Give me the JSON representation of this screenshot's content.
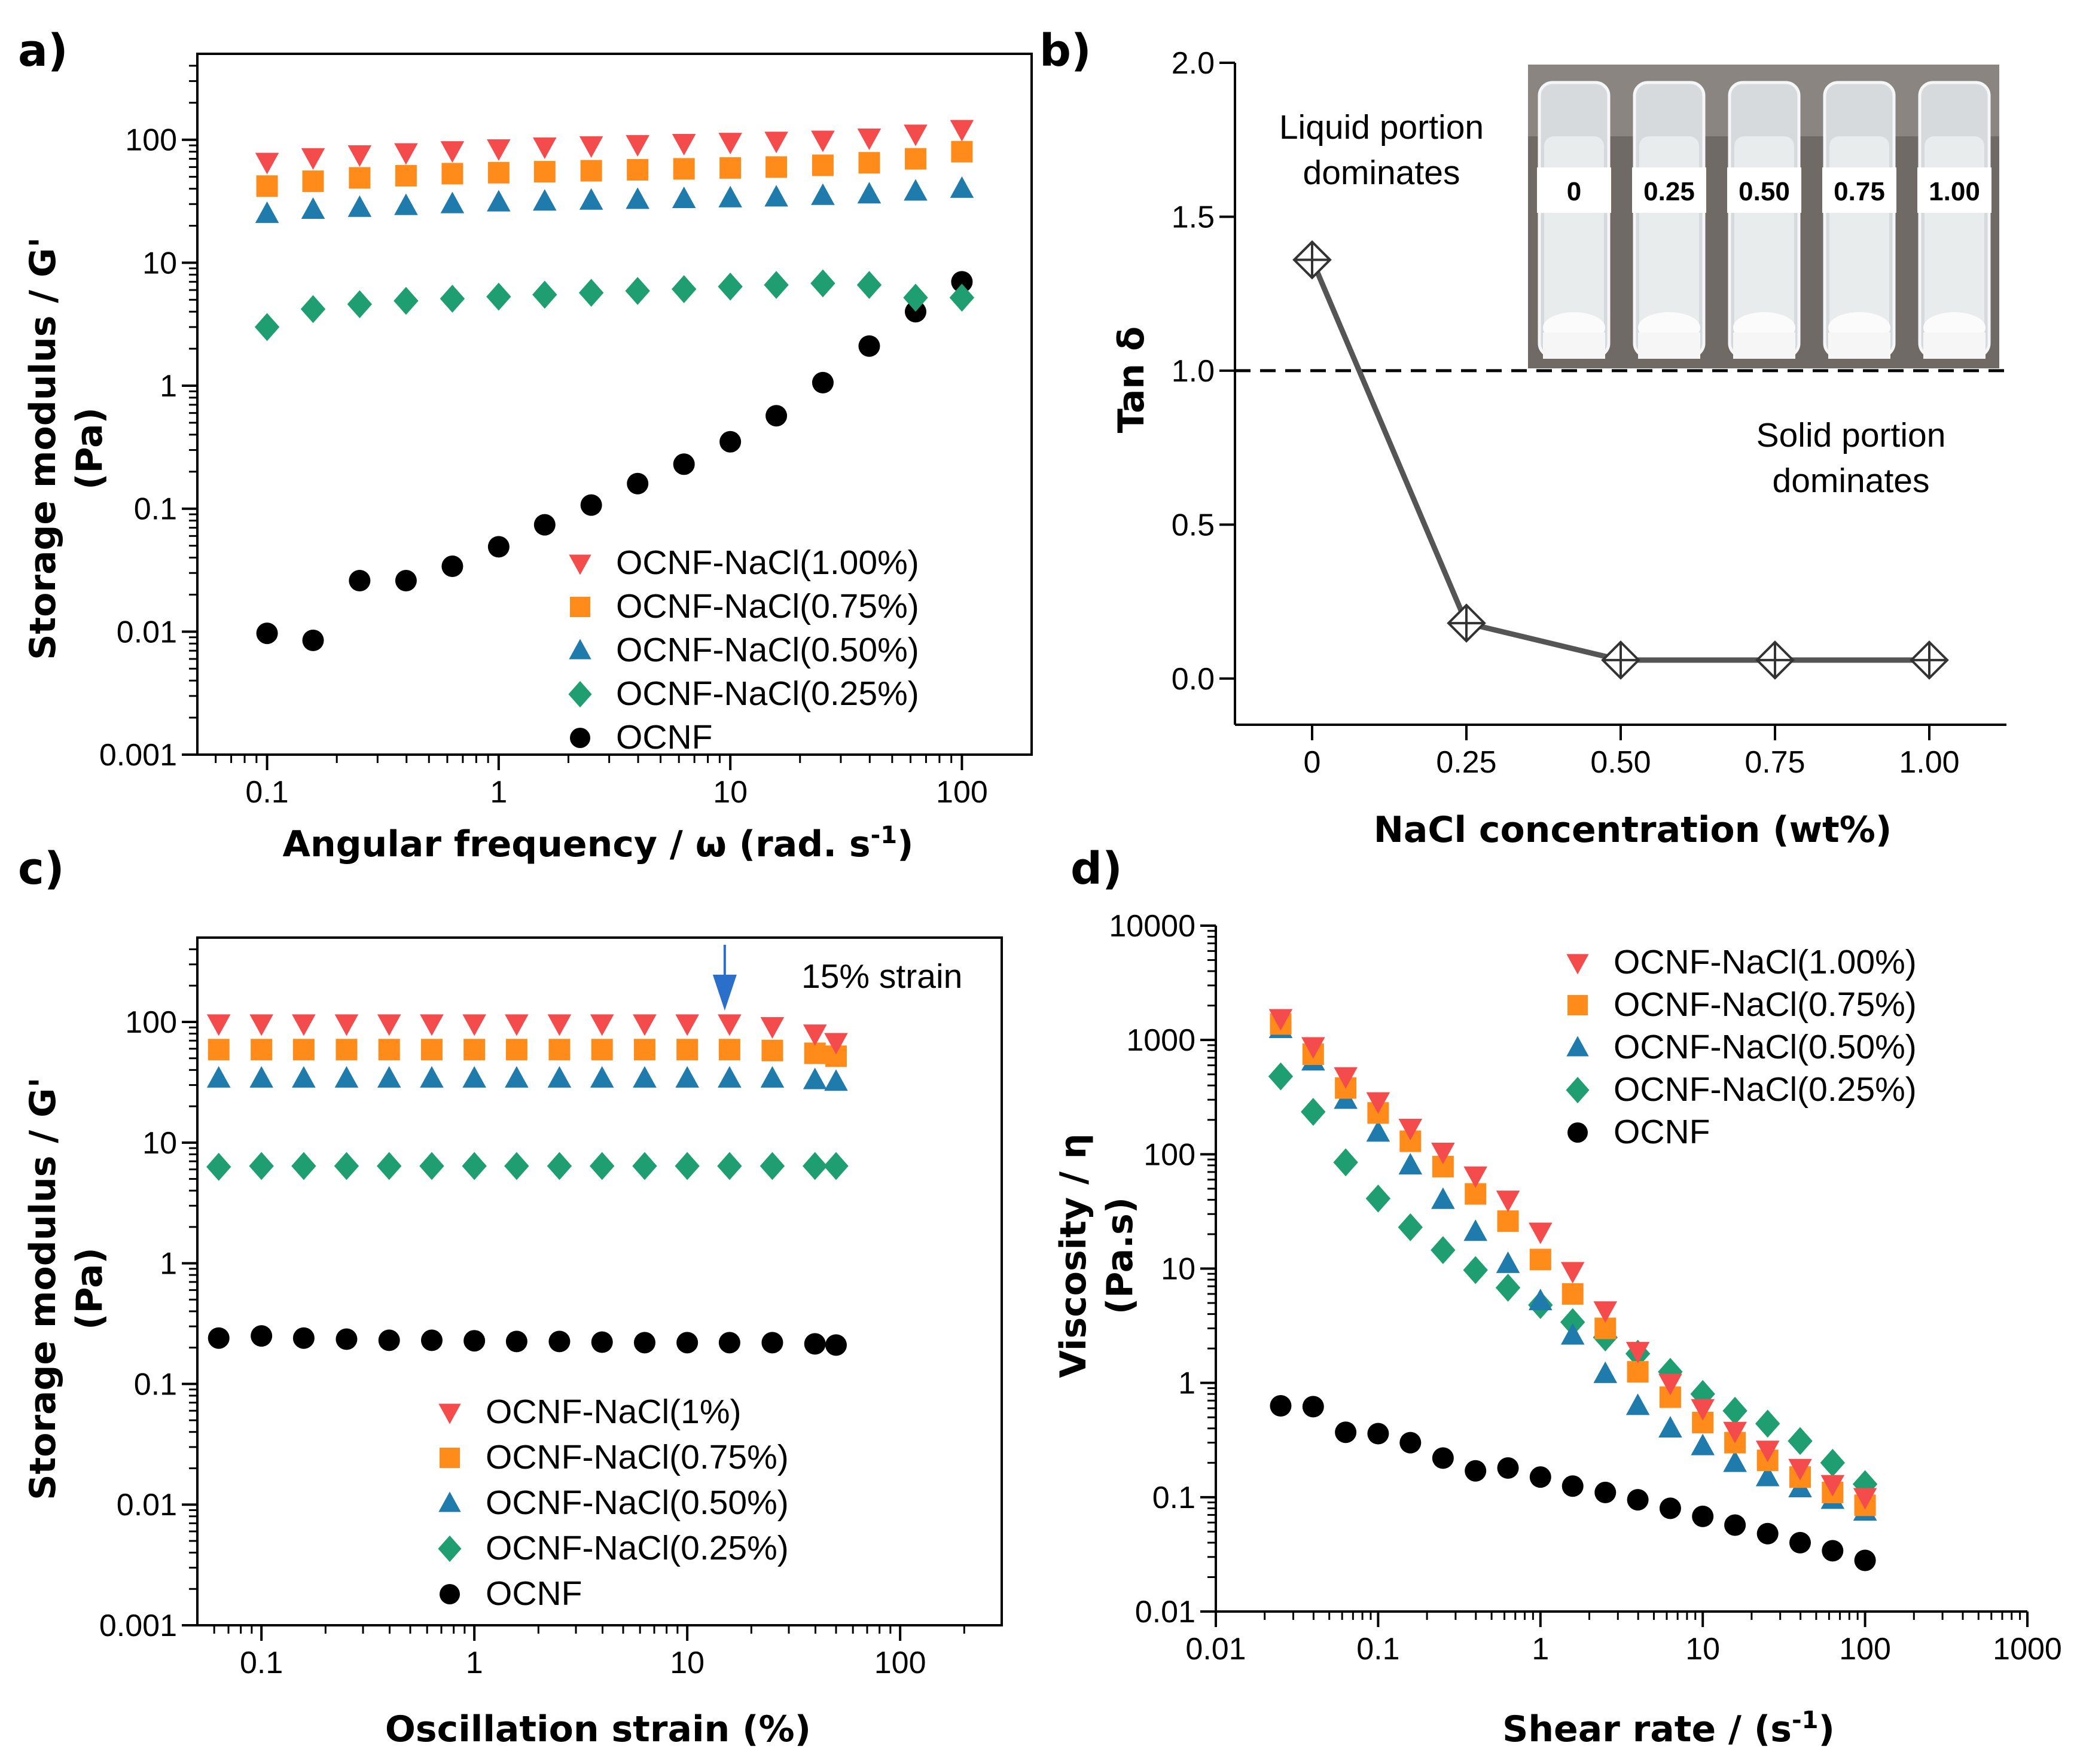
{
  "chart_data": [
    {
      "panel": "a)",
      "type": "scatter",
      "x_scale": "log",
      "y_scale": "log",
      "xlabel": "Angular frequency / ω (rad. s",
      "xlabel_sup": "-1",
      "xlabel_end": ")",
      "ylabel_lines": [
        "Storage modulus / G'",
        "(Pa)"
      ],
      "xlim": [
        0.05,
        200
      ],
      "ylim": [
        0.001,
        500
      ],
      "xticks": [
        {
          "v": 0.1,
          "label": "0.1"
        },
        {
          "v": 1,
          "label": "1"
        },
        {
          "v": 10,
          "label": "10"
        },
        {
          "v": 100,
          "label": "100"
        }
      ],
      "yticks": [
        {
          "v": 0.001,
          "label": "0.001"
        },
        {
          "v": 0.01,
          "label": "0.01"
        },
        {
          "v": 0.1,
          "label": "0.1"
        },
        {
          "v": 1,
          "label": "1"
        },
        {
          "v": 10,
          "label": "10"
        },
        {
          "v": 100,
          "label": "100"
        }
      ],
      "legend_position": "bottom-right",
      "series": [
        {
          "name": "OCNF-NaCl(1.00%)",
          "marker": "triangle-down",
          "color": "#f44c4c",
          "x": [
            0.1,
            0.158,
            0.251,
            0.398,
            0.631,
            1,
            1.58,
            2.51,
            3.98,
            6.31,
            10,
            15.8,
            25.1,
            39.8,
            63.1,
            100
          ],
          "y": [
            66,
            72,
            76,
            79,
            82,
            85,
            88,
            90,
            92,
            94,
            96,
            98,
            100,
            104,
            112,
            122
          ]
        },
        {
          "name": "OCNF-NaCl(0.75%)",
          "marker": "square",
          "color": "#ff8c1a",
          "x": [
            0.1,
            0.158,
            0.251,
            0.398,
            0.631,
            1,
            1.58,
            2.51,
            3.98,
            6.31,
            10,
            15.8,
            25.1,
            39.8,
            63.1,
            100
          ],
          "y": [
            42,
            46,
            49,
            51,
            53,
            54,
            55,
            56,
            57,
            58,
            59,
            60,
            62,
            65,
            70,
            80
          ]
        },
        {
          "name": "OCNF-NaCl(0.50%)",
          "marker": "triangle-up",
          "color": "#1f7bab",
          "x": [
            0.1,
            0.158,
            0.251,
            0.398,
            0.631,
            1,
            1.58,
            2.51,
            3.98,
            6.31,
            10,
            15.8,
            25.1,
            39.8,
            63.1,
            100
          ],
          "y": [
            25,
            27,
            28,
            29,
            30,
            31,
            31.5,
            32,
            32.5,
            33,
            33.5,
            34,
            35,
            36,
            38,
            40
          ]
        },
        {
          "name": "OCNF-NaCl(0.25%)",
          "marker": "diamond",
          "color": "#1f9e72",
          "x": [
            0.1,
            0.158,
            0.251,
            0.398,
            0.631,
            1,
            1.58,
            2.51,
            3.98,
            6.31,
            10,
            15.8,
            25.1,
            39.8,
            63.1,
            100
          ],
          "y": [
            3.0,
            4.2,
            4.6,
            4.9,
            5.1,
            5.3,
            5.5,
            5.7,
            5.9,
            6.1,
            6.4,
            6.6,
            6.8,
            6.6,
            5.2,
            5.2
          ]
        },
        {
          "name": "OCNF",
          "marker": "circle",
          "color": "#000000",
          "x": [
            0.1,
            0.158,
            0.251,
            0.398,
            0.631,
            1,
            1.58,
            2.51,
            3.98,
            6.31,
            10,
            15.8,
            25.1,
            39.8,
            63.1,
            100
          ],
          "y": [
            0.0097,
            0.0085,
            0.026,
            0.026,
            0.034,
            0.049,
            0.074,
            0.107,
            0.16,
            0.23,
            0.35,
            0.57,
            1.06,
            2.1,
            4.0,
            7.0
          ]
        }
      ]
    },
    {
      "panel": "b)",
      "type": "line",
      "xlabel": "NaCl concentration (wt%)",
      "ylabel": "Tan δ",
      "xlim": [
        -0.125,
        1.125
      ],
      "ylim": [
        -0.15,
        2.0
      ],
      "xticks": [
        {
          "v": 0,
          "label": "0"
        },
        {
          "v": 0.25,
          "label": "0.25"
        },
        {
          "v": 0.5,
          "label": "0.50"
        },
        {
          "v": 0.75,
          "label": "0.75"
        },
        {
          "v": 1.0,
          "label": "1.00"
        }
      ],
      "yticks": [
        {
          "v": 0,
          "label": "0.0"
        },
        {
          "v": 0.5,
          "label": "0.5"
        },
        {
          "v": 1.0,
          "label": "1.0"
        },
        {
          "v": 1.5,
          "label": "1.5"
        },
        {
          "v": 2.0,
          "label": "2.0"
        }
      ],
      "series": [
        {
          "name": "Tan δ",
          "marker": "crossed-diamond",
          "color": "#555555",
          "x": [
            0,
            0.25,
            0.5,
            0.75,
            1.0
          ],
          "y": [
            1.36,
            0.18,
            0.06,
            0.06,
            0.06
          ]
        }
      ],
      "reference_line": {
        "y": 1.0,
        "style": "dashed"
      },
      "annotations": {
        "liquid": [
          "Liquid portion",
          "dominates"
        ],
        "solid": [
          "Solid portion",
          "dominates"
        ]
      },
      "inset_photo": {
        "description": "five vials",
        "labels": [
          "0",
          "0.25",
          "0.50",
          "0.75",
          "1.00"
        ]
      }
    },
    {
      "panel": "c)",
      "type": "scatter",
      "x_scale": "log",
      "y_scale": "log",
      "xlabel": "Oscillation strain (%)",
      "ylabel_lines": [
        "Storage modulus / G'",
        "(Pa)"
      ],
      "xlim": [
        0.05,
        300
      ],
      "ylim": [
        0.001,
        500
      ],
      "xticks": [
        {
          "v": 0.1,
          "label": "0.1"
        },
        {
          "v": 1,
          "label": "1"
        },
        {
          "v": 10,
          "label": "10"
        },
        {
          "v": 100,
          "label": "100"
        }
      ],
      "yticks": [
        {
          "v": 0.001,
          "label": "0.001"
        },
        {
          "v": 0.01,
          "label": "0.01"
        },
        {
          "v": 0.1,
          "label": "0.1"
        },
        {
          "v": 1,
          "label": "1"
        },
        {
          "v": 10,
          "label": "10"
        },
        {
          "v": 100,
          "label": "100"
        }
      ],
      "legend_position": "bottom-center",
      "annotation": {
        "text": "15% strain",
        "x": 15
      },
      "series": [
        {
          "name": "OCNF-NaCl(1%)",
          "marker": "triangle-down",
          "color": "#f44c4c",
          "x": [
            0.063,
            0.1,
            0.158,
            0.251,
            0.398,
            0.631,
            1,
            1.58,
            2.51,
            3.98,
            6.31,
            10,
            15.8,
            25.1,
            39.8,
            50
          ],
          "y": [
            97,
            97,
            97,
            97,
            97,
            97,
            97,
            97,
            97,
            97,
            97,
            97,
            97,
            92,
            80,
            68
          ]
        },
        {
          "name": "OCNF-NaCl(0.75%)",
          "marker": "square",
          "color": "#ff8c1a",
          "x": [
            0.063,
            0.1,
            0.158,
            0.251,
            0.398,
            0.631,
            1,
            1.58,
            2.51,
            3.98,
            6.31,
            10,
            15.8,
            25.1,
            39.8,
            50
          ],
          "y": [
            59,
            59,
            59,
            59,
            59,
            59,
            59,
            59,
            59,
            59,
            59,
            59,
            59,
            58,
            55,
            52
          ]
        },
        {
          "name": "OCNF-NaCl(0.50%)",
          "marker": "triangle-up",
          "color": "#1f7bab",
          "x": [
            0.063,
            0.1,
            0.158,
            0.251,
            0.398,
            0.631,
            1,
            1.58,
            2.51,
            3.98,
            6.31,
            10,
            15.8,
            25.1,
            39.8,
            50
          ],
          "y": [
            34,
            34,
            34,
            34,
            34,
            34,
            34,
            34,
            34,
            34,
            34,
            34,
            34,
            34,
            33,
            32
          ]
        },
        {
          "name": "OCNF-NaCl(0.25%)",
          "marker": "diamond",
          "color": "#1f9e72",
          "x": [
            0.063,
            0.1,
            0.158,
            0.251,
            0.398,
            0.631,
            1,
            1.58,
            2.51,
            3.98,
            6.31,
            10,
            15.8,
            25.1,
            39.8,
            50
          ],
          "y": [
            6.3,
            6.4,
            6.4,
            6.4,
            6.4,
            6.4,
            6.4,
            6.4,
            6.4,
            6.4,
            6.4,
            6.4,
            6.4,
            6.4,
            6.4,
            6.4
          ]
        },
        {
          "name": "OCNF",
          "marker": "circle",
          "color": "#000000",
          "x": [
            0.063,
            0.1,
            0.158,
            0.251,
            0.398,
            0.631,
            1,
            1.58,
            2.51,
            3.98,
            6.31,
            10,
            15.8,
            25.1,
            39.8,
            50
          ],
          "y": [
            0.24,
            0.25,
            0.24,
            0.235,
            0.23,
            0.23,
            0.228,
            0.225,
            0.225,
            0.222,
            0.22,
            0.22,
            0.22,
            0.22,
            0.215,
            0.21
          ]
        }
      ]
    },
    {
      "panel": "d)",
      "type": "scatter",
      "x_scale": "log",
      "y_scale": "log",
      "xlabel": "Shear rate / (s",
      "xlabel_sup": "-1",
      "xlabel_end": ")",
      "ylabel_lines": [
        "Viscosity / η",
        "(Pa.s)"
      ],
      "xlim": [
        0.01,
        1000
      ],
      "ylim": [
        0.01,
        10000
      ],
      "xticks": [
        {
          "v": 0.01,
          "label": "0.01"
        },
        {
          "v": 0.1,
          "label": "0.1"
        },
        {
          "v": 1,
          "label": "1"
        },
        {
          "v": 10,
          "label": "10"
        },
        {
          "v": 100,
          "label": "100"
        },
        {
          "v": 1000,
          "label": "1000"
        }
      ],
      "yticks": [
        {
          "v": 0.01,
          "label": "0.01"
        },
        {
          "v": 0.1,
          "label": "0.1"
        },
        {
          "v": 1,
          "label": "1"
        },
        {
          "v": 10,
          "label": "10"
        },
        {
          "v": 100,
          "label": "100"
        },
        {
          "v": 1000,
          "label": "1000"
        },
        {
          "v": 10000,
          "label": "10000"
        }
      ],
      "legend_position": "top-right",
      "series": [
        {
          "name": "OCNF-NaCl(1.00%)",
          "marker": "triangle-down",
          "color": "#f44c4c",
          "x": [
            0.0251,
            0.0398,
            0.0631,
            0.1,
            0.158,
            0.251,
            0.398,
            0.631,
            1,
            1.58,
            2.51,
            3.98,
            6.31,
            10,
            15.8,
            25.1,
            39.8,
            63.1,
            100
          ],
          "y": [
            1550,
            880,
            480,
            290,
            170,
            105,
            65,
            40,
            21,
            9.5,
            4.3,
            1.9,
            1.0,
            0.6,
            0.38,
            0.26,
            0.18,
            0.13,
            0.1
          ]
        },
        {
          "name": "OCNF-NaCl(0.75%)",
          "marker": "square",
          "color": "#ff8c1a",
          "x": [
            0.0251,
            0.0398,
            0.0631,
            0.1,
            0.158,
            0.251,
            0.398,
            0.631,
            1,
            1.58,
            2.51,
            3.98,
            6.31,
            10,
            15.8,
            25.1,
            39.8,
            63.1,
            100
          ],
          "y": [
            1380,
            750,
            380,
            230,
            130,
            78,
            45,
            26,
            12,
            6.0,
            3.0,
            1.25,
            0.75,
            0.45,
            0.3,
            0.21,
            0.15,
            0.11,
            0.085
          ]
        },
        {
          "name": "OCNF-NaCl(0.50%)",
          "marker": "triangle-up",
          "color": "#1f7bab",
          "x": [
            0.0251,
            0.0398,
            0.0631,
            0.1,
            0.158,
            0.251,
            0.398,
            0.631,
            1,
            1.58,
            2.51,
            3.98,
            6.31,
            10,
            15.8,
            25.1,
            39.8,
            63.1,
            100
          ],
          "y": [
            1250,
            650,
            300,
            155,
            80,
            40,
            21,
            11,
            5.2,
            2.6,
            1.2,
            0.63,
            0.4,
            0.28,
            0.2,
            0.15,
            0.12,
            0.095,
            0.075
          ]
        },
        {
          "name": "OCNF-NaCl(0.25%)",
          "marker": "diamond",
          "color": "#1f9e72",
          "x": [
            0.0251,
            0.0398,
            0.0631,
            0.1,
            0.158,
            0.251,
            0.398,
            0.631,
            1,
            1.58,
            2.51,
            3.98,
            6.31,
            10,
            15.8,
            25.1,
            39.8,
            63.1,
            100
          ],
          "y": [
            480,
            235,
            85,
            41,
            23,
            14.5,
            9.7,
            6.8,
            4.8,
            3.4,
            2.5,
            1.8,
            1.25,
            0.8,
            0.57,
            0.44,
            0.31,
            0.2,
            0.13
          ]
        },
        {
          "name": "OCNF",
          "marker": "circle",
          "color": "#000000",
          "x": [
            0.0251,
            0.0398,
            0.0631,
            0.1,
            0.158,
            0.251,
            0.398,
            0.631,
            1,
            1.58,
            2.51,
            3.98,
            6.31,
            10,
            15.8,
            25.1,
            39.8,
            63.1,
            100
          ],
          "y": [
            0.63,
            0.62,
            0.37,
            0.36,
            0.3,
            0.22,
            0.17,
            0.18,
            0.15,
            0.125,
            0.11,
            0.095,
            0.08,
            0.068,
            0.057,
            0.048,
            0.04,
            0.034,
            0.028
          ]
        }
      ]
    }
  ]
}
